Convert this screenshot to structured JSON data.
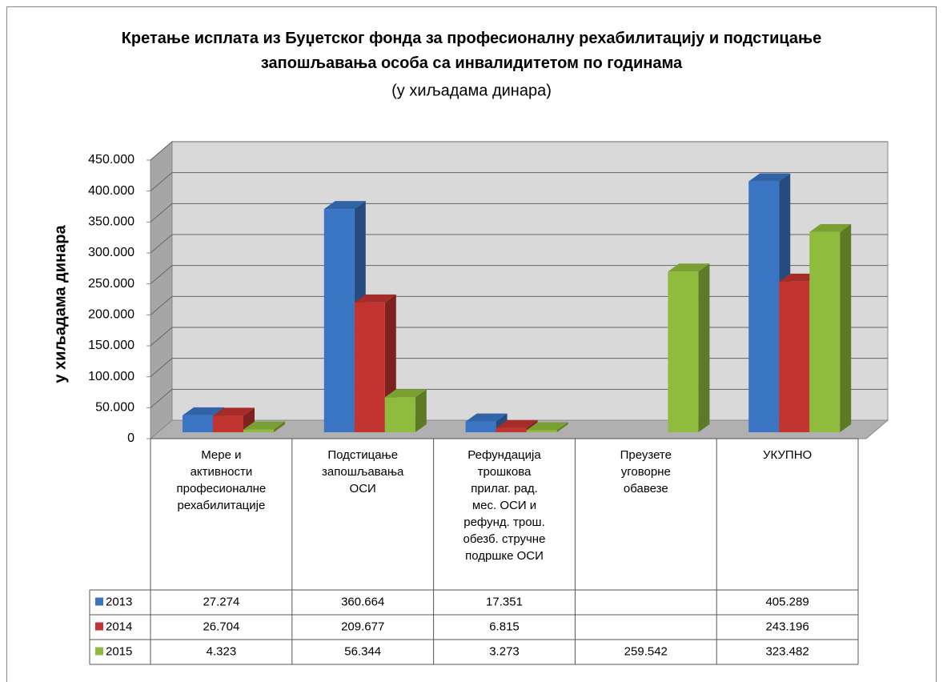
{
  "chart_data": {
    "type": "bar",
    "title": "Кретање исплата из Буџетског фонда за професионалну рехабилитацију и подстицање запошљавања особа са инвалидитетом по годинама",
    "subtitle": "(у хиљадама динара)",
    "y_label": "у хиљадама динара",
    "categories": [
      "Мере и активности професионалне рехабилитације",
      "Подстицање запошљавања ОСИ",
      "Рефундација трошкова прилаг. рад. мес. ОСИ и рефунд. трош. обезб. стручне подршке ОСИ",
      "Преузете уговорне обавезе",
      "УКУПНО"
    ],
    "series": [
      {
        "name": "2013",
        "color": "#3a75c4",
        "values": [
          27274,
          360664,
          17351,
          null,
          405289
        ],
        "value_labels": [
          "27.274",
          "360.664",
          "17.351",
          null,
          "405.289"
        ]
      },
      {
        "name": "2014",
        "color": "#c2342f",
        "values": [
          26704,
          209677,
          6815,
          null,
          243196
        ],
        "value_labels": [
          "26.704",
          "209.677",
          "6.815",
          null,
          "243.196"
        ]
      },
      {
        "name": "2015",
        "color": "#8fbc3c",
        "values": [
          4323,
          56344,
          3273,
          259542,
          323482
        ],
        "value_labels": [
          "4.323",
          "56.344",
          "3.273",
          "259.542",
          "323.482"
        ]
      }
    ],
    "ylim": [
      0,
      450000
    ],
    "yticks": [
      0,
      {
        "value": 50000,
        "label": "50.000"
      },
      {
        "value": 100000,
        "label": "100.000"
      },
      {
        "value": 150000,
        "label": "150.000"
      },
      {
        "value": 200000,
        "label": "200.000"
      },
      {
        "value": 250000,
        "label": "250.000"
      },
      {
        "value": 300000,
        "label": "300.000"
      },
      {
        "value": 350000,
        "label": "350.000"
      },
      {
        "value": 400000,
        "label": "400.000"
      },
      {
        "value": 450000,
        "label": "450.000"
      }
    ],
    "grid": true
  }
}
